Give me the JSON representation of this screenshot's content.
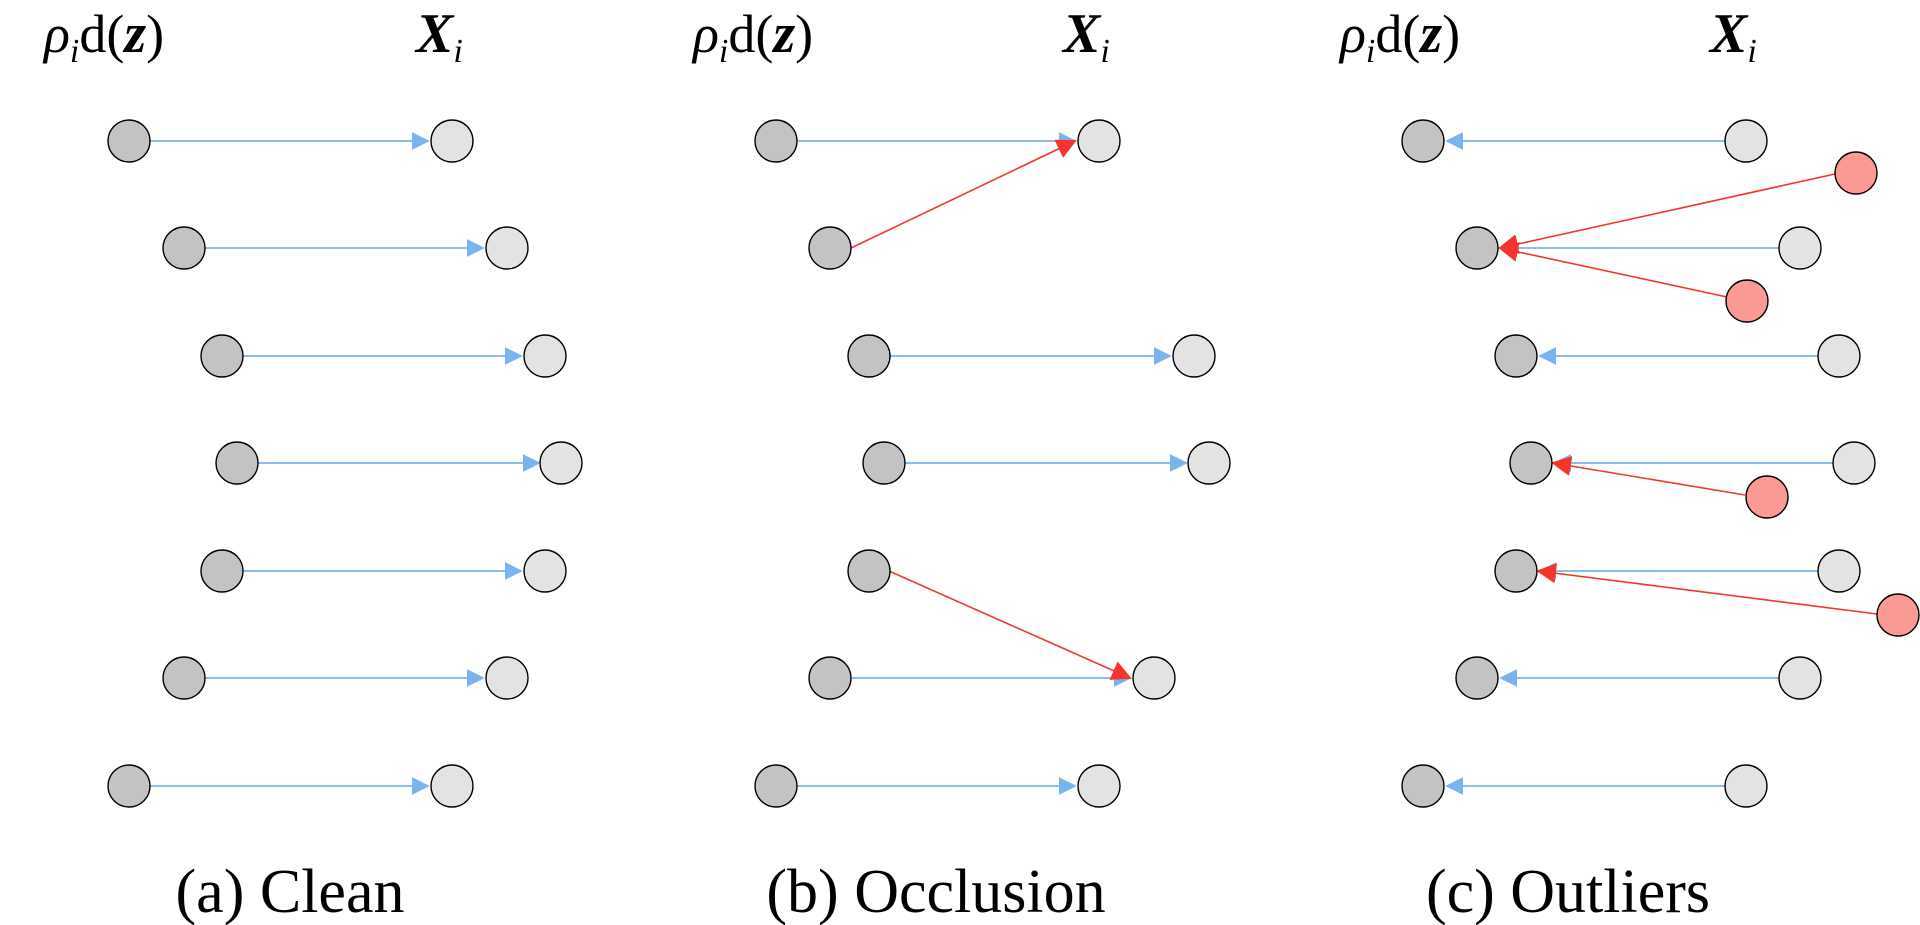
{
  "panels": [
    {
      "caption": "(a) Clean",
      "header_left": {
        "rho": "ρ",
        "i": "i",
        "d": "d(",
        "z": "z",
        "close": ")"
      },
      "header_right": {
        "X": "X",
        "i": "i"
      },
      "edge_direction": "rho_to_X",
      "pairs": 7,
      "outliers": 0
    },
    {
      "caption": "(b) Occlusion",
      "header_left": {
        "rho": "ρ",
        "i": "i",
        "d": "d(",
        "z": "z",
        "close": ")"
      },
      "header_right": {
        "X": "X",
        "i": "i"
      },
      "edge_direction": "rho_to_X",
      "pairs": 7,
      "occlusion_mismatches": 2
    },
    {
      "caption": "(c) Outliers",
      "header_left": {
        "rho": "ρ",
        "i": "i",
        "d": "d(",
        "z": "z",
        "close": ")"
      },
      "header_right": {
        "X": "X",
        "i": "i"
      },
      "edge_direction": "X_to_rho",
      "pairs": 7,
      "outliers": 4
    }
  ],
  "colors": {
    "depth_node": "#c3c3c3",
    "point_node": "#e3e3e3",
    "outlier_node": "#f99a94",
    "correspondence": "#7ab4ef",
    "erroneous": "#f3352d"
  }
}
